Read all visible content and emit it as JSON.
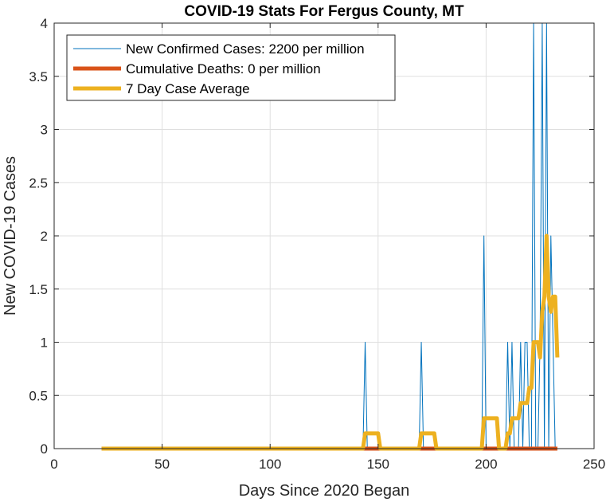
{
  "chart_data": {
    "type": "line",
    "title": "COVID-19 Stats For Fergus County, MT",
    "xlabel": "Days Since 2020 Began",
    "ylabel": "New COVID-19 Cases",
    "xlim": [
      0,
      250
    ],
    "ylim": [
      0,
      4
    ],
    "xticks": [
      0,
      50,
      100,
      150,
      200,
      250
    ],
    "yticks": [
      0,
      0.5,
      1,
      1.5,
      2,
      2.5,
      3,
      3.5,
      4
    ],
    "xtick_labels": [
      "0",
      "50",
      "100",
      "150",
      "200",
      "250"
    ],
    "ytick_labels": [
      "0",
      "0.5",
      "1",
      "1.5",
      "2",
      "2.5",
      "3",
      "3.5",
      "4"
    ],
    "grid": true,
    "legend_position": "top-left",
    "series": [
      {
        "name": "New Confirmed Cases: 2200 per million",
        "color": "#0072BD",
        "points": [
          [
            22,
            0
          ],
          [
            143,
            0
          ],
          [
            144,
            1
          ],
          [
            145,
            0
          ],
          [
            169,
            0
          ],
          [
            170,
            1
          ],
          [
            171,
            0
          ],
          [
            198,
            0
          ],
          [
            199,
            2
          ],
          [
            200,
            0
          ],
          [
            209,
            0
          ],
          [
            210,
            1
          ],
          [
            211,
            0
          ],
          [
            212,
            1
          ],
          [
            213,
            0
          ],
          [
            215,
            0
          ],
          [
            216,
            1
          ],
          [
            217,
            0
          ],
          [
            218,
            1
          ],
          [
            219,
            1
          ],
          [
            220,
            0
          ],
          [
            221,
            0
          ],
          [
            222,
            4
          ],
          [
            223,
            0
          ],
          [
            224,
            0
          ],
          [
            225,
            1
          ],
          [
            226,
            4
          ],
          [
            227,
            0
          ],
          [
            228,
            4
          ],
          [
            229,
            0
          ],
          [
            230,
            2
          ],
          [
            231,
            1
          ],
          [
            232,
            0
          ],
          [
            233,
            0
          ]
        ]
      },
      {
        "name": "Cumulative Deaths: 0 per million",
        "color": "#D95319",
        "points": [
          [
            22,
            0
          ],
          [
            233,
            0
          ]
        ]
      },
      {
        "name": "7 Day Case Average",
        "color": "#EDB120",
        "points": [
          [
            22,
            0
          ],
          [
            143,
            0
          ],
          [
            144,
            0.143
          ],
          [
            150,
            0.143
          ],
          [
            151,
            0
          ],
          [
            169,
            0
          ],
          [
            170,
            0.143
          ],
          [
            176,
            0.143
          ],
          [
            177,
            0
          ],
          [
            198,
            0
          ],
          [
            199,
            0.286
          ],
          [
            205,
            0.286
          ],
          [
            206,
            0
          ],
          [
            209,
            0
          ],
          [
            210,
            0.143
          ],
          [
            211,
            0.143
          ],
          [
            212,
            0.286
          ],
          [
            215,
            0.286
          ],
          [
            216,
            0.429
          ],
          [
            219,
            0.429
          ],
          [
            220,
            0.571
          ],
          [
            221,
            0.571
          ],
          [
            222,
            1.0
          ],
          [
            224,
            1.0
          ],
          [
            225,
            0.857
          ],
          [
            226,
            1.286
          ],
          [
            227,
            1.429
          ],
          [
            228,
            2.0
          ],
          [
            229,
            1.429
          ],
          [
            230,
            1.286
          ],
          [
            231,
            1.429
          ],
          [
            232,
            1.429
          ],
          [
            233,
            0.857
          ]
        ]
      }
    ]
  }
}
